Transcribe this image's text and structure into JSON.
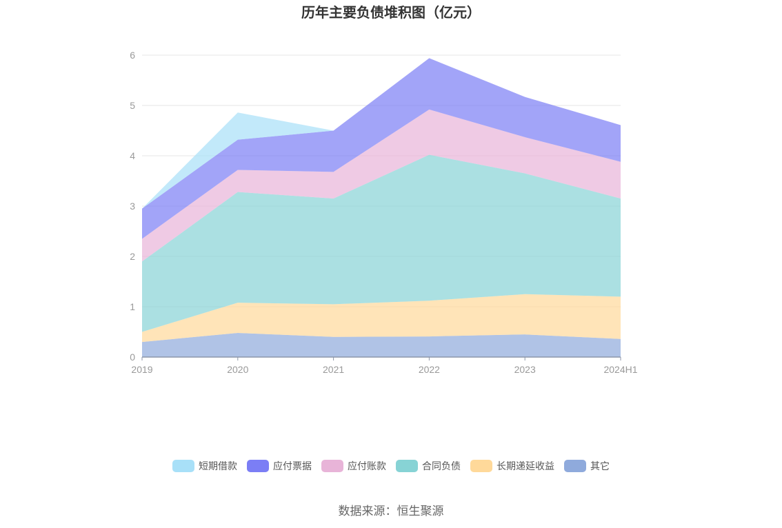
{
  "chart_data": {
    "type": "area",
    "stacked": true,
    "title": "历年主要负债堆积图（亿元）",
    "xlabel": "",
    "ylabel": "",
    "categories": [
      "2019",
      "2020",
      "2021",
      "2022",
      "2023",
      "2024H1"
    ],
    "ylim": [
      0,
      6
    ],
    "yticks": [
      0,
      1,
      2,
      3,
      4,
      5,
      6
    ],
    "grid": true,
    "legend": "bottom",
    "series": [
      {
        "name": "其它",
        "color": "#8FAADC",
        "values": [
          0.3,
          0.48,
          0.4,
          0.41,
          0.45,
          0.36
        ]
      },
      {
        "name": "长期递延收益",
        "color": "#FFD99A",
        "values": [
          0.2,
          0.6,
          0.65,
          0.71,
          0.8,
          0.84
        ]
      },
      {
        "name": "合同负债",
        "color": "#87D3D5",
        "values": [
          1.4,
          2.2,
          2.1,
          2.9,
          2.4,
          1.95
        ]
      },
      {
        "name": "应付账款",
        "color": "#E8B4D8",
        "values": [
          0.45,
          0.44,
          0.53,
          0.9,
          0.72,
          0.73
        ]
      },
      {
        "name": "应付票据",
        "color": "#7B7EF5",
        "values": [
          0.6,
          0.6,
          0.82,
          1.02,
          0.8,
          0.73
        ]
      },
      {
        "name": "短期借款",
        "color": "#A8E0F8",
        "values": [
          0.0,
          0.54,
          0.0,
          0.0,
          0.0,
          0.0
        ]
      }
    ],
    "legend_order": [
      "短期借款",
      "应付票据",
      "应付账款",
      "合同负债",
      "长期递延收益",
      "其它"
    ]
  },
  "source_label": "数据来源：恒生聚源"
}
